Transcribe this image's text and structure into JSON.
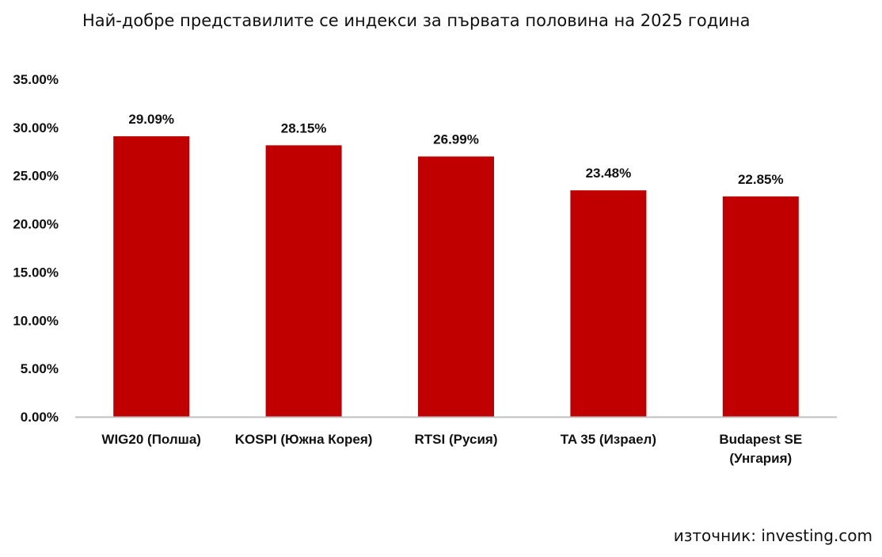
{
  "chart_data": {
    "type": "bar",
    "title": "Най-добре представилите се индекси за първата половина на 2025 година",
    "categories": [
      [
        "WIG20 (Полша)"
      ],
      [
        "KOSPI (Южна Корея)"
      ],
      [
        "RTSI (Русия)"
      ],
      [
        "TA 35 (Израел)"
      ],
      [
        "Budapest SE",
        "(Унгария)"
      ]
    ],
    "values": [
      29.09,
      28.15,
      26.99,
      23.48,
      22.85
    ],
    "data_labels": [
      "29.09%",
      "28.15%",
      "26.99%",
      "23.48%",
      "22.85%"
    ],
    "ylim": [
      0,
      35
    ],
    "yticks": [
      "0.00%",
      "5.00%",
      "10.00%",
      "15.00%",
      "20.00%",
      "25.00%",
      "30.00%",
      "35.00%"
    ],
    "ytick_values": [
      0,
      5,
      10,
      15,
      20,
      25,
      30,
      35
    ],
    "grid": false,
    "bar_color": "#c00000"
  },
  "source": "източник: investing.com"
}
